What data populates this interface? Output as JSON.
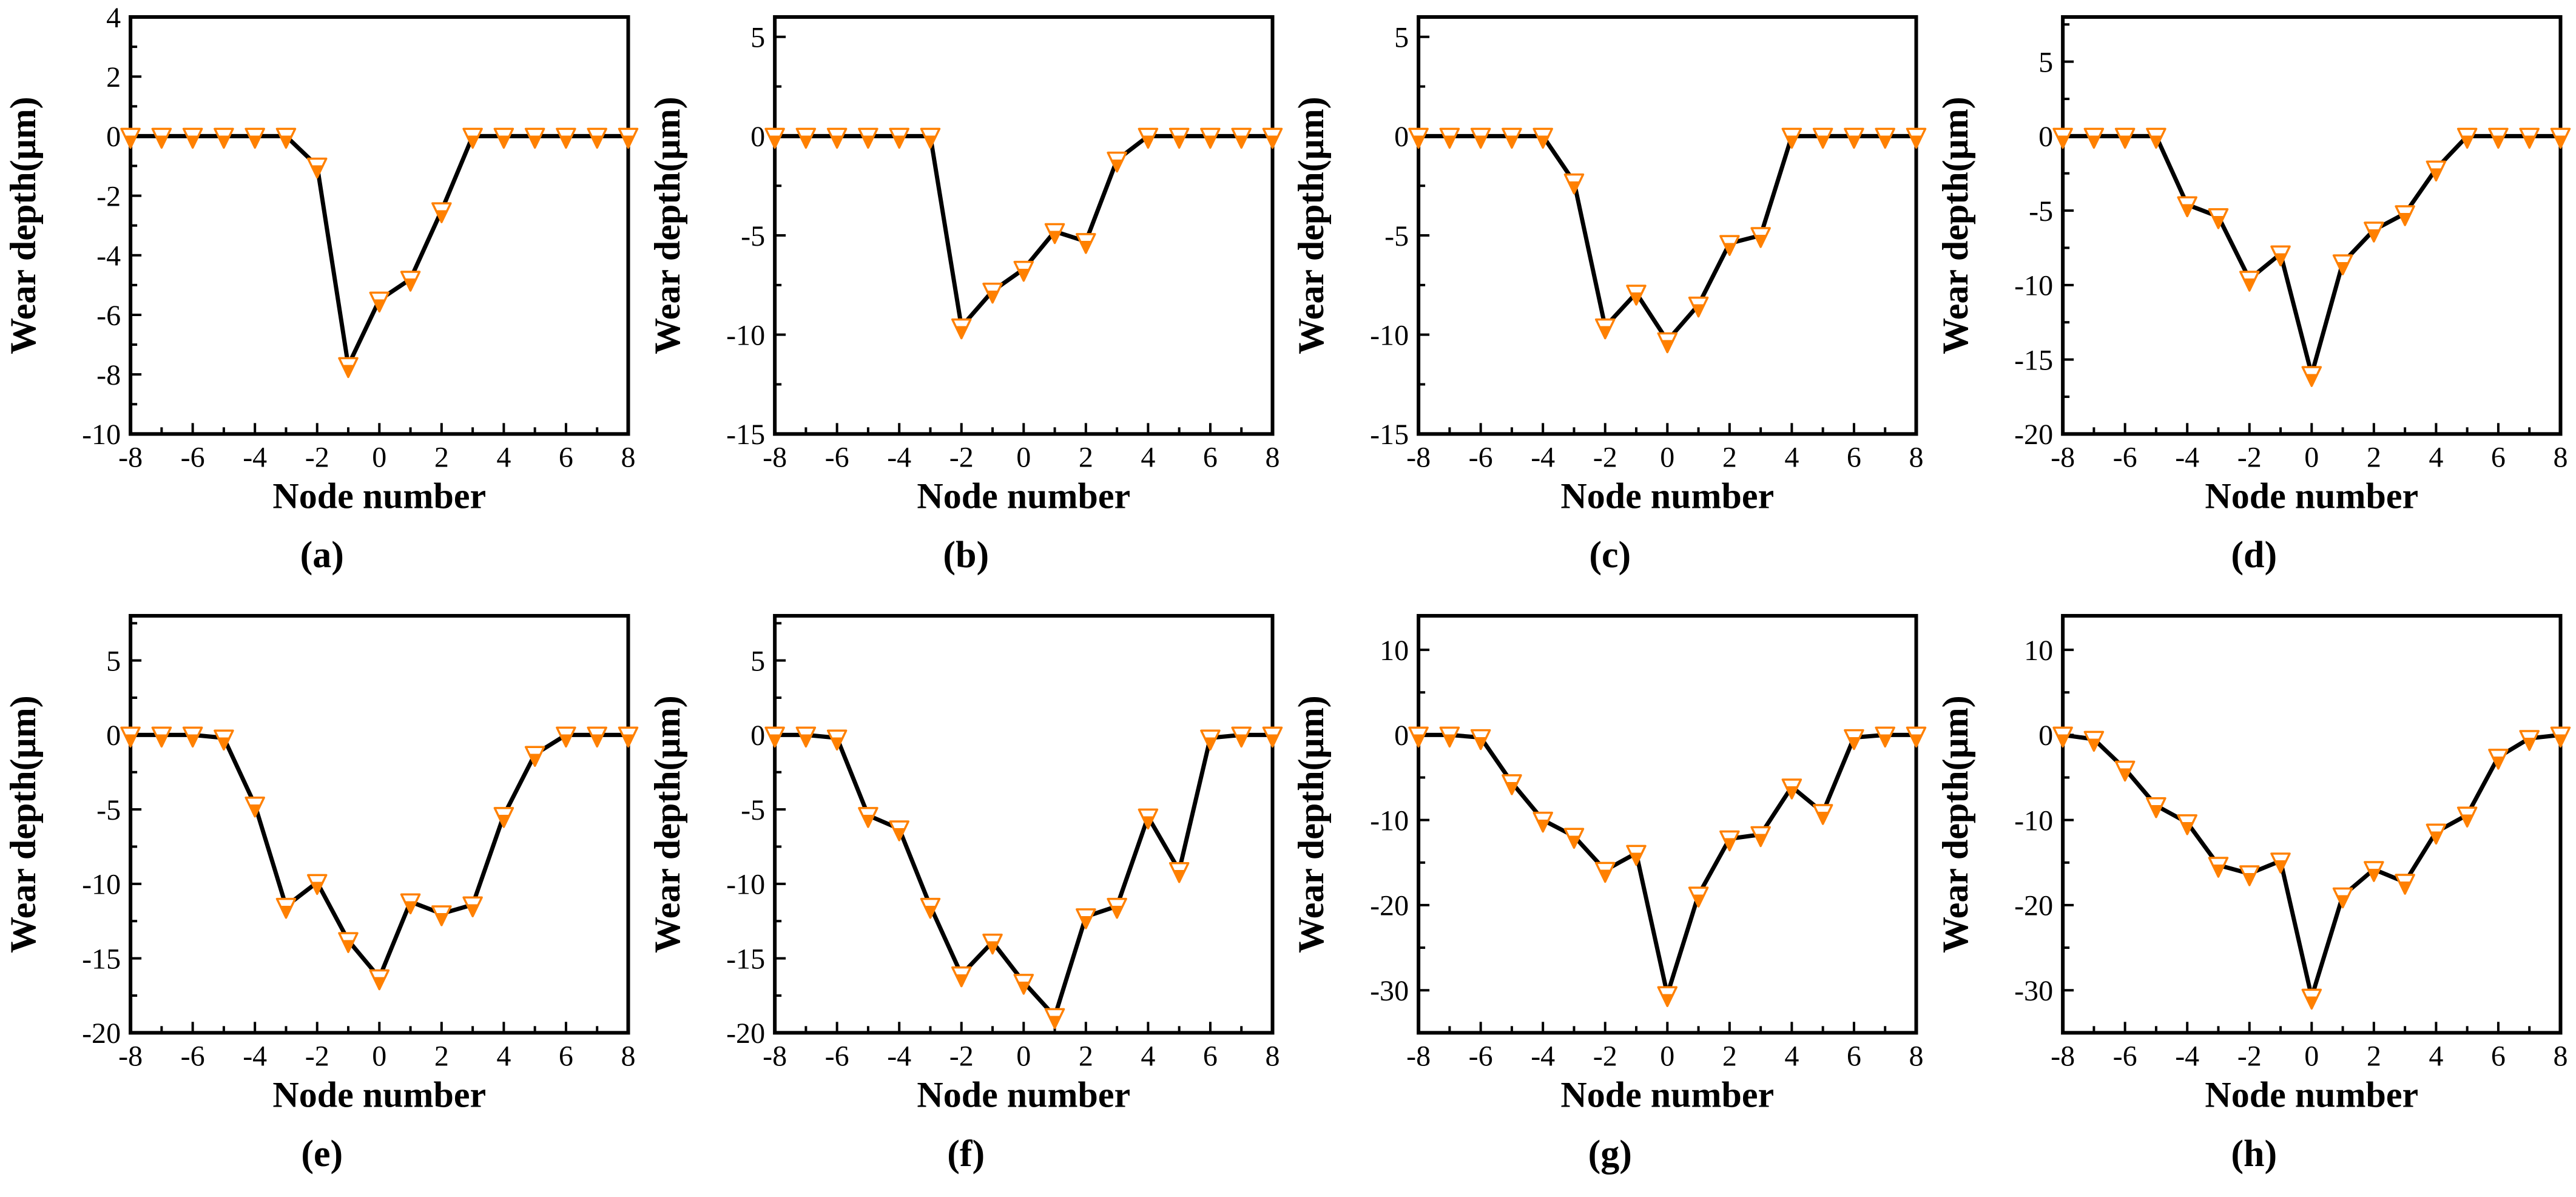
{
  "figure": {
    "xlabel": "Node number",
    "ylabel": "Wear depth(μm)",
    "accent_color": "#FF8000",
    "line_color": "#000000",
    "background_color": "#FFFFFF",
    "marker": "inverted-triangle-bottom-half-filled",
    "layout": "2 rows x 4 columns of subplots labeled (a) through (h)"
  },
  "chart_data": [
    {
      "type": "line",
      "label": "(a)",
      "xlabel": "Node number",
      "ylabel": "Wear depth(μm)",
      "x": [
        -8,
        -7,
        -6,
        -5,
        -4,
        -3,
        -2,
        -1,
        0,
        1,
        2,
        3,
        4,
        5,
        6,
        7,
        8
      ],
      "y": [
        0,
        0,
        0,
        0,
        0,
        0,
        -1.0,
        -7.7,
        -5.5,
        -4.8,
        -2.5,
        0,
        0,
        0,
        0,
        0,
        0
      ],
      "xlim": [
        -8,
        8
      ],
      "ylim": [
        -10,
        4
      ],
      "xticks": [
        -8,
        -6,
        -4,
        -2,
        0,
        2,
        4,
        6,
        8
      ],
      "yticks": [
        -10,
        -8,
        -6,
        -4,
        -2,
        0,
        2,
        4
      ],
      "marker_color": "#FF8000",
      "line_color": "#000000",
      "grid": "off",
      "legend": "none"
    },
    {
      "type": "line",
      "label": "(b)",
      "xlabel": "Node number",
      "ylabel": "Wear depth(μm)",
      "x": [
        -8,
        -7,
        -6,
        -5,
        -4,
        -3,
        -2,
        -1,
        0,
        1,
        2,
        3,
        4,
        5,
        6,
        7,
        8
      ],
      "y": [
        0,
        0,
        0,
        0,
        0,
        0,
        -9.6,
        -7.8,
        -6.7,
        -4.8,
        -5.3,
        -1.2,
        0,
        0,
        0,
        0,
        0
      ],
      "xlim": [
        -8,
        8
      ],
      "ylim": [
        -15,
        6
      ],
      "xticks": [
        -8,
        -6,
        -4,
        -2,
        0,
        2,
        4,
        6,
        8
      ],
      "yticks": [
        -15,
        -10,
        -5,
        0,
        5
      ],
      "marker_color": "#FF8000",
      "line_color": "#000000",
      "grid": "off",
      "legend": "none"
    },
    {
      "type": "line",
      "label": "(c)",
      "xlabel": "Node number",
      "ylabel": "Wear depth(μm)",
      "x": [
        -8,
        -7,
        -6,
        -5,
        -4,
        -3,
        -2,
        -1,
        0,
        1,
        2,
        3,
        4,
        5,
        6,
        7,
        8
      ],
      "y": [
        0,
        0,
        0,
        0,
        0,
        -2.3,
        -9.6,
        -7.9,
        -10.3,
        -8.5,
        -5.4,
        -5.0,
        0,
        0,
        0,
        0,
        0
      ],
      "xlim": [
        -8,
        8
      ],
      "ylim": [
        -15,
        6
      ],
      "xticks": [
        -8,
        -6,
        -4,
        -2,
        0,
        2,
        4,
        6,
        8
      ],
      "yticks": [
        -15,
        -10,
        -5,
        0,
        5
      ],
      "marker_color": "#FF8000",
      "line_color": "#000000",
      "grid": "off",
      "legend": "none"
    },
    {
      "type": "line",
      "label": "(d)",
      "xlabel": "Node number",
      "ylabel": "Wear depth(μm)",
      "x": [
        -8,
        -7,
        -6,
        -5,
        -4,
        -3,
        -2,
        -1,
        0,
        1,
        2,
        3,
        4,
        5,
        6,
        7,
        8
      ],
      "y": [
        0,
        0,
        0,
        0,
        -4.6,
        -5.4,
        -9.6,
        -7.9,
        -16.0,
        -8.5,
        -6.3,
        -5.2,
        -2.2,
        0,
        0,
        0,
        0
      ],
      "xlim": [
        -8,
        8
      ],
      "ylim": [
        -20,
        8
      ],
      "xticks": [
        -8,
        -6,
        -4,
        -2,
        0,
        2,
        4,
        6,
        8
      ],
      "yticks": [
        -20,
        -15,
        -10,
        -5,
        0,
        5
      ],
      "marker_color": "#FF8000",
      "line_color": "#000000",
      "grid": "off",
      "legend": "none"
    },
    {
      "type": "line",
      "label": "(e)",
      "xlabel": "Node number",
      "ylabel": "Wear depth(μm)",
      "x": [
        -8,
        -7,
        -6,
        -5,
        -4,
        -3,
        -2,
        -1,
        0,
        1,
        2,
        3,
        4,
        5,
        6,
        7,
        8
      ],
      "y": [
        0,
        0,
        0,
        -0.2,
        -4.7,
        -11.5,
        -9.9,
        -13.8,
        -16.3,
        -11.2,
        -12.0,
        -11.4,
        -5.4,
        -1.3,
        0,
        0,
        0
      ],
      "xlim": [
        -8,
        8
      ],
      "ylim": [
        -20,
        8
      ],
      "xticks": [
        -8,
        -6,
        -4,
        -2,
        0,
        2,
        4,
        6,
        8
      ],
      "yticks": [
        -20,
        -15,
        -10,
        -5,
        0,
        5
      ],
      "marker_color": "#FF8000",
      "line_color": "#000000",
      "grid": "off",
      "legend": "none"
    },
    {
      "type": "line",
      "label": "(f)",
      "xlabel": "Node number",
      "ylabel": "Wear depth(μm)",
      "x": [
        -8,
        -7,
        -6,
        -5,
        -4,
        -3,
        -2,
        -1,
        0,
        1,
        2,
        3,
        4,
        5,
        6,
        7,
        8
      ],
      "y": [
        0,
        0,
        -0.2,
        -5.4,
        -6.3,
        -11.5,
        -16.1,
        -13.9,
        -16.6,
        -18.9,
        -12.2,
        -11.5,
        -5.5,
        -9.1,
        -0.2,
        0,
        0
      ],
      "xlim": [
        -8,
        8
      ],
      "ylim": [
        -20,
        8
      ],
      "xticks": [
        -8,
        -6,
        -4,
        -2,
        0,
        2,
        4,
        6,
        8
      ],
      "yticks": [
        -20,
        -15,
        -10,
        -5,
        0,
        5
      ],
      "marker_color": "#FF8000",
      "line_color": "#000000",
      "grid": "off",
      "legend": "none"
    },
    {
      "type": "line",
      "label": "(g)",
      "xlabel": "Node number",
      "ylabel": "Wear depth(μm)",
      "x": [
        -8,
        -7,
        -6,
        -5,
        -4,
        -3,
        -2,
        -1,
        0,
        1,
        2,
        3,
        4,
        5,
        6,
        7,
        8
      ],
      "y": [
        0,
        0,
        -0.3,
        -5.6,
        -10.0,
        -11.9,
        -15.9,
        -13.9,
        -30.5,
        -18.8,
        -12.2,
        -11.7,
        -6.1,
        -9.1,
        -0.3,
        0,
        0
      ],
      "xlim": [
        -8,
        8
      ],
      "ylim": [
        -35,
        14
      ],
      "xticks": [
        -8,
        -6,
        -4,
        -2,
        0,
        2,
        4,
        6,
        8
      ],
      "yticks": [
        -30,
        -20,
        -10,
        0,
        10
      ],
      "marker_color": "#FF8000",
      "line_color": "#000000",
      "grid": "off",
      "legend": "none"
    },
    {
      "type": "line",
      "label": "(h)",
      "xlabel": "Node number",
      "ylabel": "Wear depth(μm)",
      "x": [
        -8,
        -7,
        -6,
        -5,
        -4,
        -3,
        -2,
        -1,
        0,
        1,
        2,
        3,
        4,
        5,
        6,
        7,
        8
      ],
      "y": [
        0,
        -0.5,
        -4.0,
        -8.3,
        -10.3,
        -15.3,
        -16.3,
        -14.8,
        -30.8,
        -18.9,
        -15.8,
        -17.3,
        -11.4,
        -9.4,
        -2.6,
        -0.4,
        0
      ],
      "xlim": [
        -8,
        8
      ],
      "ylim": [
        -35,
        14
      ],
      "xticks": [
        -8,
        -6,
        -4,
        -2,
        0,
        2,
        4,
        6,
        8
      ],
      "yticks": [
        -30,
        -20,
        -10,
        0,
        10
      ],
      "marker_color": "#FF8000",
      "line_color": "#000000",
      "grid": "off",
      "legend": "none"
    }
  ]
}
